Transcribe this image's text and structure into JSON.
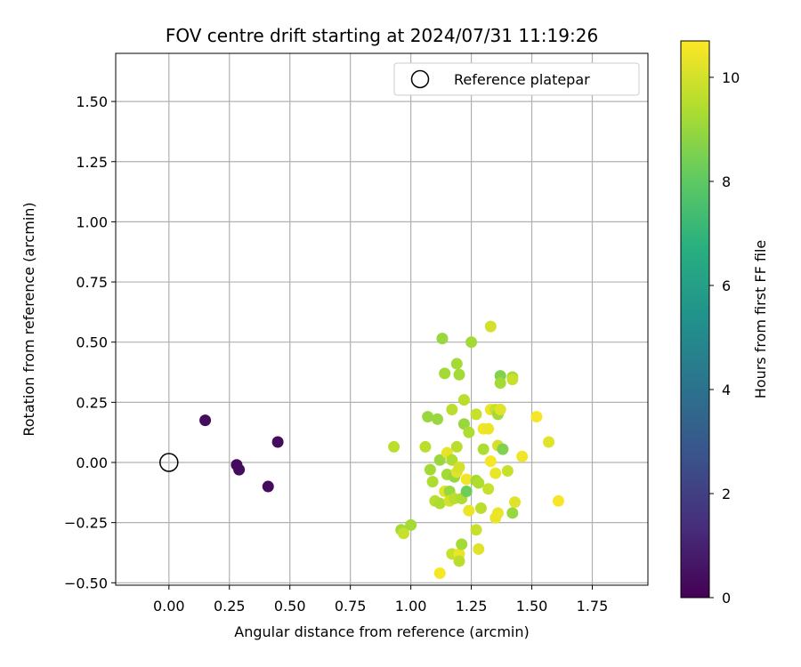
{
  "chart_data": {
    "type": "scatter",
    "title": "FOV centre drift starting at 2024/07/31 11:19:26",
    "xlabel": "Angular distance from reference (arcmin)",
    "ylabel": "Rotation from reference (arcmin)",
    "xlim": [
      -0.22,
      1.98
    ],
    "ylim": [
      -0.51,
      1.7
    ],
    "xticks": [
      0.0,
      0.25,
      0.5,
      0.75,
      1.0,
      1.25,
      1.5,
      1.75
    ],
    "xtick_labels": [
      "0.00",
      "0.25",
      "0.50",
      "0.75",
      "1.00",
      "1.25",
      "1.50",
      "1.75"
    ],
    "yticks": [
      -0.5,
      -0.25,
      0.0,
      0.25,
      0.5,
      0.75,
      1.0,
      1.25,
      1.5
    ],
    "ytick_labels": [
      "−0.50",
      "−0.25",
      "0.00",
      "0.25",
      "0.50",
      "0.75",
      "1.00",
      "1.25",
      "1.50"
    ],
    "grid": true,
    "legend": {
      "placement": "top-right",
      "entries": [
        "Reference platepar"
      ]
    },
    "reference_point": {
      "x": 0.0,
      "y": 0.0,
      "label": "Reference platepar"
    },
    "colorbar": {
      "label": "Hours from first FF file",
      "range": [
        0,
        10.7
      ],
      "ticks": [
        0,
        2,
        4,
        6,
        8,
        10
      ],
      "tick_labels": [
        "0",
        "2",
        "4",
        "6",
        "8",
        "10"
      ],
      "colormap": "viridis"
    },
    "points": [
      {
        "x": 0.15,
        "y": 0.175,
        "c": 0.3
      },
      {
        "x": 0.28,
        "y": -0.01,
        "c": 0.3
      },
      {
        "x": 0.29,
        "y": -0.03,
        "c": 0.3
      },
      {
        "x": 0.41,
        "y": -0.1,
        "c": 0.3
      },
      {
        "x": 0.45,
        "y": 0.085,
        "c": 0.3
      },
      {
        "x": 0.93,
        "y": 0.065,
        "c": 9.6
      },
      {
        "x": 0.96,
        "y": -0.28,
        "c": 9.2
      },
      {
        "x": 0.97,
        "y": -0.295,
        "c": 9.8
      },
      {
        "x": 1.0,
        "y": -0.26,
        "c": 9.2
      },
      {
        "x": 1.06,
        "y": 0.065,
        "c": 9.6
      },
      {
        "x": 1.07,
        "y": 0.19,
        "c": 9.0
      },
      {
        "x": 1.08,
        "y": -0.03,
        "c": 9.2
      },
      {
        "x": 1.09,
        "y": -0.08,
        "c": 9.4
      },
      {
        "x": 1.1,
        "y": -0.16,
        "c": 9.6
      },
      {
        "x": 1.11,
        "y": 0.18,
        "c": 9.0
      },
      {
        "x": 1.12,
        "y": 0.01,
        "c": 9.0
      },
      {
        "x": 1.12,
        "y": -0.17,
        "c": 9.4
      },
      {
        "x": 1.12,
        "y": -0.46,
        "c": 10.6
      },
      {
        "x": 1.13,
        "y": 0.515,
        "c": 9.0
      },
      {
        "x": 1.14,
        "y": 0.37,
        "c": 9.2
      },
      {
        "x": 1.14,
        "y": -0.12,
        "c": 10.2
      },
      {
        "x": 1.15,
        "y": 0.04,
        "c": 10.3
      },
      {
        "x": 1.15,
        "y": -0.05,
        "c": 9.2
      },
      {
        "x": 1.16,
        "y": -0.12,
        "c": 9.0
      },
      {
        "x": 1.16,
        "y": -0.16,
        "c": 10.0
      },
      {
        "x": 1.17,
        "y": 0.22,
        "c": 9.6
      },
      {
        "x": 1.17,
        "y": 0.01,
        "c": 9.4
      },
      {
        "x": 1.17,
        "y": -0.38,
        "c": 9.8
      },
      {
        "x": 1.18,
        "y": -0.06,
        "c": 9.0
      },
      {
        "x": 1.18,
        "y": -0.15,
        "c": 9.6
      },
      {
        "x": 1.19,
        "y": 0.41,
        "c": 9.2
      },
      {
        "x": 1.19,
        "y": 0.065,
        "c": 9.6
      },
      {
        "x": 1.19,
        "y": -0.04,
        "c": 10.2
      },
      {
        "x": 1.2,
        "y": 0.365,
        "c": 9.2
      },
      {
        "x": 1.2,
        "y": -0.02,
        "c": 10.0
      },
      {
        "x": 1.2,
        "y": -0.38,
        "c": 10.4
      },
      {
        "x": 1.2,
        "y": -0.41,
        "c": 9.6
      },
      {
        "x": 1.21,
        "y": -0.15,
        "c": 9.4
      },
      {
        "x": 1.21,
        "y": -0.34,
        "c": 9.2
      },
      {
        "x": 1.22,
        "y": 0.26,
        "c": 9.6
      },
      {
        "x": 1.22,
        "y": 0.16,
        "c": 9.0
      },
      {
        "x": 1.23,
        "y": -0.12,
        "c": 8.3
      },
      {
        "x": 1.23,
        "y": -0.07,
        "c": 10.5
      },
      {
        "x": 1.24,
        "y": 0.125,
        "c": 9.4
      },
      {
        "x": 1.24,
        "y": -0.2,
        "c": 10.4
      },
      {
        "x": 1.25,
        "y": 0.5,
        "c": 9.2
      },
      {
        "x": 1.27,
        "y": 0.2,
        "c": 9.8
      },
      {
        "x": 1.27,
        "y": -0.075,
        "c": 9.2
      },
      {
        "x": 1.27,
        "y": -0.28,
        "c": 9.8
      },
      {
        "x": 1.28,
        "y": -0.085,
        "c": 9.4
      },
      {
        "x": 1.28,
        "y": -0.36,
        "c": 10.2
      },
      {
        "x": 1.29,
        "y": -0.19,
        "c": 9.6
      },
      {
        "x": 1.3,
        "y": 0.14,
        "c": 10.5
      },
      {
        "x": 1.3,
        "y": 0.055,
        "c": 9.4
      },
      {
        "x": 1.32,
        "y": 0.14,
        "c": 10.4
      },
      {
        "x": 1.32,
        "y": -0.11,
        "c": 9.8
      },
      {
        "x": 1.33,
        "y": 0.565,
        "c": 10.0
      },
      {
        "x": 1.33,
        "y": 0.22,
        "c": 10.4
      },
      {
        "x": 1.33,
        "y": 0.005,
        "c": 10.6
      },
      {
        "x": 1.35,
        "y": 0.22,
        "c": 9.8
      },
      {
        "x": 1.35,
        "y": -0.045,
        "c": 10.4
      },
      {
        "x": 1.35,
        "y": -0.23,
        "c": 10.4
      },
      {
        "x": 1.36,
        "y": 0.2,
        "c": 9.2
      },
      {
        "x": 1.36,
        "y": 0.07,
        "c": 10.0
      },
      {
        "x": 1.36,
        "y": -0.21,
        "c": 10.4
      },
      {
        "x": 1.37,
        "y": 0.36,
        "c": 8.6
      },
      {
        "x": 1.37,
        "y": 0.33,
        "c": 9.2
      },
      {
        "x": 1.37,
        "y": 0.22,
        "c": 10.2
      },
      {
        "x": 1.38,
        "y": 0.055,
        "c": 8.6
      },
      {
        "x": 1.4,
        "y": -0.035,
        "c": 9.8
      },
      {
        "x": 1.42,
        "y": 0.355,
        "c": 9.2
      },
      {
        "x": 1.42,
        "y": 0.345,
        "c": 9.8
      },
      {
        "x": 1.42,
        "y": -0.21,
        "c": 9.0
      },
      {
        "x": 1.43,
        "y": -0.165,
        "c": 10.2
      },
      {
        "x": 1.46,
        "y": 0.025,
        "c": 10.5
      },
      {
        "x": 1.52,
        "y": 0.19,
        "c": 10.6
      },
      {
        "x": 1.57,
        "y": 0.085,
        "c": 10.2
      },
      {
        "x": 1.61,
        "y": -0.16,
        "c": 10.6
      }
    ]
  }
}
